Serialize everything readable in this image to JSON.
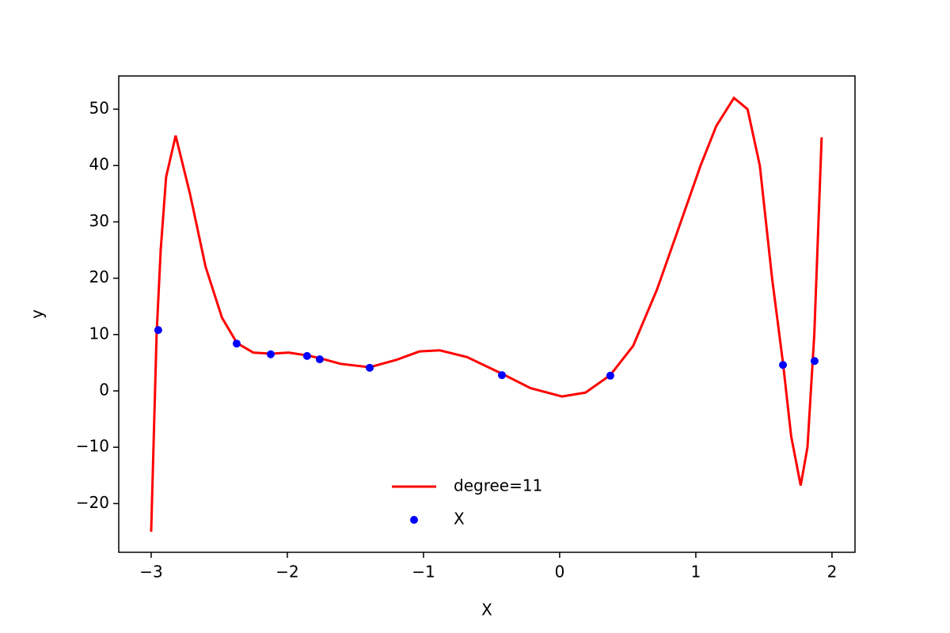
{
  "chart_data": {
    "type": "line",
    "xlabel": "X",
    "ylabel": "y",
    "xlim": [
      -3.238,
      2.169
    ],
    "ylim": [
      -28.65,
      55.9
    ],
    "xticks": [
      {
        "value": -3,
        "label": "−3"
      },
      {
        "value": -2,
        "label": "−2"
      },
      {
        "value": -1,
        "label": "−1"
      },
      0,
      1,
      2
    ],
    "yticks": [
      {
        "value": -20,
        "label": "−20"
      },
      {
        "value": -10,
        "label": "−10"
      },
      0,
      10,
      20,
      30,
      40,
      50
    ],
    "legend": "lower center",
    "series": [
      {
        "name": "degree=11",
        "type": "line",
        "color": "red",
        "x": [
          -3.0,
          -2.96,
          -2.93,
          -2.89,
          -2.82,
          -2.715,
          -2.6,
          -2.48,
          -2.37,
          -2.25,
          -2.12,
          -1.99,
          -1.855,
          -1.76,
          -1.61,
          -1.395,
          -1.2,
          -1.03,
          -0.88,
          -0.68,
          -0.42,
          -0.215,
          0.017,
          0.19,
          0.372,
          0.54,
          0.715,
          0.89,
          1.035,
          1.15,
          1.28,
          1.38,
          1.47,
          1.56,
          1.64,
          1.7,
          1.77,
          1.82,
          1.87,
          1.924
        ],
        "values": [
          -25,
          10,
          25,
          38,
          45.3,
          35,
          22,
          13,
          8.5,
          6.8,
          6.6,
          6.8,
          6.3,
          5.8,
          4.8,
          4.2,
          5.5,
          7.0,
          7.2,
          6.0,
          3.0,
          0.5,
          -1.0,
          -0.3,
          2.8,
          8,
          18,
          30,
          40,
          47,
          52,
          50,
          40,
          20,
          5,
          -8,
          -16.8,
          -10,
          10,
          45
        ]
      },
      {
        "name": "X",
        "type": "scatter",
        "color": "blue",
        "x": [
          -2.948,
          -2.372,
          -2.122,
          -1.855,
          -1.762,
          -1.395,
          -0.424,
          0.372,
          1.64,
          1.872
        ],
        "values": [
          10.8,
          8.4,
          6.5,
          6.2,
          5.6,
          4.1,
          2.8,
          2.7,
          4.6,
          5.3
        ]
      }
    ]
  }
}
